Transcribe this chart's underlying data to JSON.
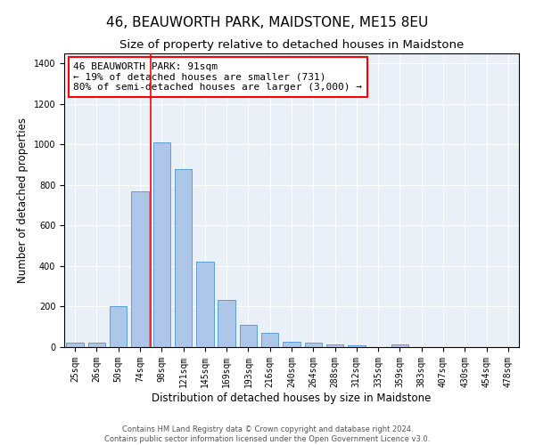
{
  "title": "46, BEAUWORTH PARK, MAIDSTONE, ME15 8EU",
  "subtitle": "Size of property relative to detached houses in Maidstone",
  "xlabel": "Distribution of detached houses by size in Maidstone",
  "ylabel": "Number of detached properties",
  "footer_line1": "Contains HM Land Registry data © Crown copyright and database right 2024.",
  "footer_line2": "Contains public sector information licensed under the Open Government Licence v3.0.",
  "categories": [
    "25sqm",
    "26sqm",
    "50sqm",
    "74sqm",
    "98sqm",
    "121sqm",
    "145sqm",
    "169sqm",
    "193sqm",
    "216sqm",
    "240sqm",
    "264sqm",
    "288sqm",
    "312sqm",
    "335sqm",
    "359sqm",
    "383sqm",
    "407sqm",
    "430sqm",
    "454sqm",
    "478sqm"
  ],
  "values": [
    20,
    20,
    200,
    770,
    1010,
    880,
    420,
    235,
    110,
    70,
    25,
    20,
    15,
    10,
    0,
    15,
    0,
    0,
    0,
    0,
    0
  ],
  "bar_color": "#aec6e8",
  "bar_edgecolor": "#5a9fd4",
  "bar_width": 0.8,
  "vline_color": "red",
  "annotation_text": "46 BEAUWORTH PARK: 91sqm\n← 19% of detached houses are smaller (731)\n80% of semi-detached houses are larger (3,000) →",
  "annotation_box_edgecolor": "red",
  "annotation_box_facecolor": "white",
  "ylim": [
    0,
    1450
  ],
  "yticks": [
    0,
    200,
    400,
    600,
    800,
    1000,
    1200,
    1400
  ],
  "background_color": "#eaf0f8",
  "title_fontsize": 11,
  "subtitle_fontsize": 9.5,
  "axis_label_fontsize": 8.5,
  "tick_fontsize": 7,
  "annotation_fontsize": 8,
  "footer_fontsize": 6
}
